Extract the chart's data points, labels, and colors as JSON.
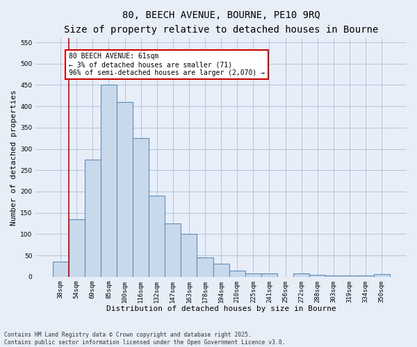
{
  "title_line1": "80, BEECH AVENUE, BOURNE, PE10 9RQ",
  "title_line2": "Size of property relative to detached houses in Bourne",
  "xlabel": "Distribution of detached houses by size in Bourne",
  "ylabel": "Number of detached properties",
  "categories": [
    "38sqm",
    "54sqm",
    "69sqm",
    "85sqm",
    "100sqm",
    "116sqm",
    "132sqm",
    "147sqm",
    "163sqm",
    "178sqm",
    "194sqm",
    "210sqm",
    "225sqm",
    "241sqm",
    "256sqm",
    "272sqm",
    "288sqm",
    "303sqm",
    "319sqm",
    "334sqm",
    "350sqm"
  ],
  "values": [
    35,
    135,
    275,
    450,
    410,
    325,
    190,
    125,
    100,
    45,
    30,
    15,
    8,
    8,
    0,
    8,
    4,
    2,
    2,
    2,
    6
  ],
  "bar_color": "#c9d9ec",
  "bar_edge_color": "#5b8db8",
  "bar_edge_width": 0.8,
  "grid_color": "#b0c4de",
  "background_color": "#e8eef8",
  "marker_color": "#cc0000",
  "annotation_text": "80 BEECH AVENUE: 61sqm\n← 3% of detached houses are smaller (71)\n96% of semi-detached houses are larger (2,070) →",
  "annotation_box_color": "#cc0000",
  "ylim": [
    0,
    560
  ],
  "yticks": [
    0,
    50,
    100,
    150,
    200,
    250,
    300,
    350,
    400,
    450,
    500,
    550
  ],
  "footnote": "Contains HM Land Registry data © Crown copyright and database right 2025.\nContains public sector information licensed under the Open Government Licence v3.0.",
  "title_fontsize": 10,
  "subtitle_fontsize": 9,
  "axis_label_fontsize": 8,
  "tick_fontsize": 6.5,
  "annotation_fontsize": 7,
  "ylabel_fontsize": 8
}
